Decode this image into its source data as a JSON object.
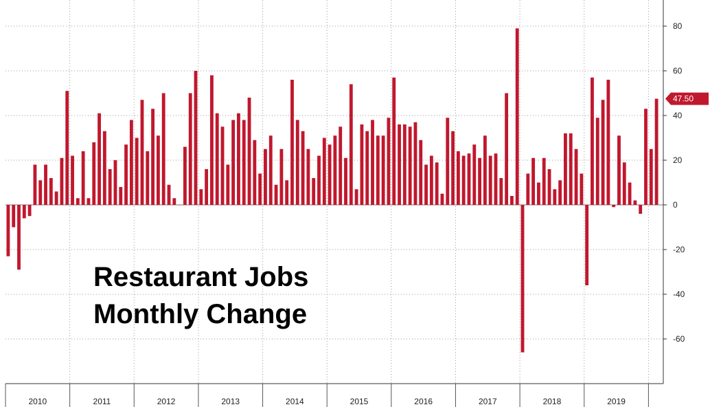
{
  "colors": {
    "bar": "#c0182e",
    "grid": "#9a9a9a",
    "axis": "#333333",
    "badge_text": "#ffffff"
  },
  "chart_data": {
    "type": "bar",
    "title_lines": [
      "Restaurant Jobs",
      "Monthly Change"
    ],
    "x_start": "2010-01",
    "years": [
      "2010",
      "2011",
      "2012",
      "2013",
      "2014",
      "2015",
      "2016",
      "2017",
      "2018",
      "2019"
    ],
    "yticks": [
      80,
      60,
      40,
      20,
      0,
      -20,
      -40,
      -60
    ],
    "ytick_labels": [
      "80",
      "60",
      "40",
      "20",
      "0",
      "-20",
      "-40",
      "-60"
    ],
    "ylim": [
      -80,
      92
    ],
    "last_value_label": "47.50",
    "grid": true,
    "values": [
      -23,
      -10,
      -29,
      -6,
      -5,
      18,
      11,
      18,
      12,
      6,
      21,
      51,
      22,
      3,
      24,
      3,
      28,
      41,
      33,
      16,
      20,
      8,
      27,
      38,
      30,
      47,
      24,
      43,
      31,
      50,
      9,
      3,
      0,
      26,
      50,
      60,
      7,
      16,
      58,
      41,
      35,
      18,
      38,
      41,
      38,
      48,
      29,
      14,
      25,
      31,
      9,
      25,
      11,
      56,
      38,
      33,
      25,
      12,
      22,
      30,
      27,
      31,
      35,
      21,
      54,
      7,
      36,
      33,
      38,
      31,
      31,
      39,
      57,
      36,
      36,
      35,
      37,
      29,
      18,
      22,
      19,
      5,
      39,
      33,
      24,
      22,
      23,
      27,
      21,
      31,
      22,
      23,
      12,
      50,
      4,
      79,
      -66,
      14,
      21,
      10,
      21,
      16,
      7,
      11,
      32,
      32,
      25,
      14,
      -36,
      57,
      39,
      47,
      56,
      -1,
      31,
      19,
      10,
      2,
      -4,
      43,
      25,
      47.5
    ]
  }
}
